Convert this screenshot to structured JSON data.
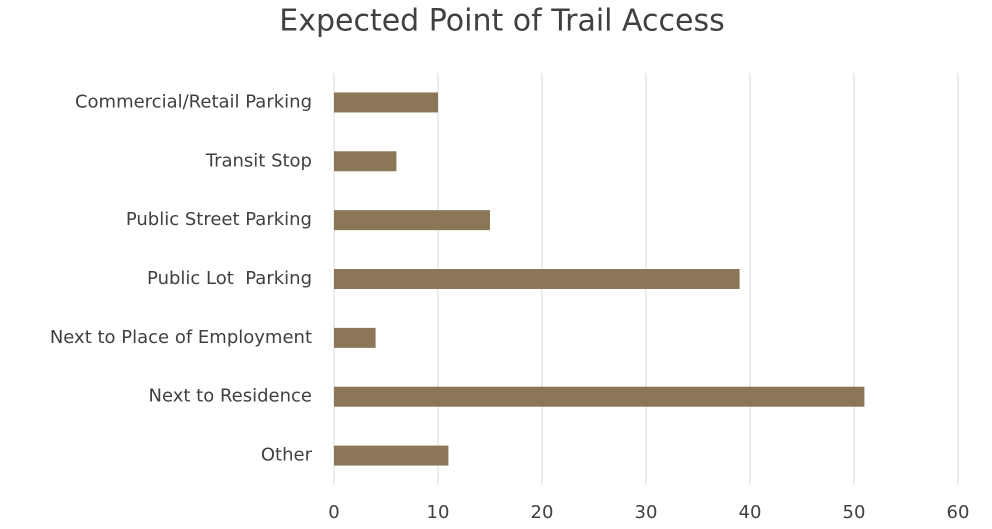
{
  "chart_data": {
    "type": "bar",
    "orientation": "horizontal",
    "title": "Expected Point of Trail Access",
    "categories": [
      "Commercial/Retail Parking",
      "Transit Stop",
      "Public Street Parking",
      "Public Lot  Parking",
      "Next to Place of Employment",
      "Next to Residence",
      "Other"
    ],
    "values": [
      10,
      6,
      15,
      39,
      4,
      51,
      11
    ],
    "color": "#8b7657",
    "xlim": [
      0,
      60
    ],
    "xticks": [
      0,
      10,
      20,
      30,
      40,
      50,
      60
    ],
    "grid": true
  }
}
